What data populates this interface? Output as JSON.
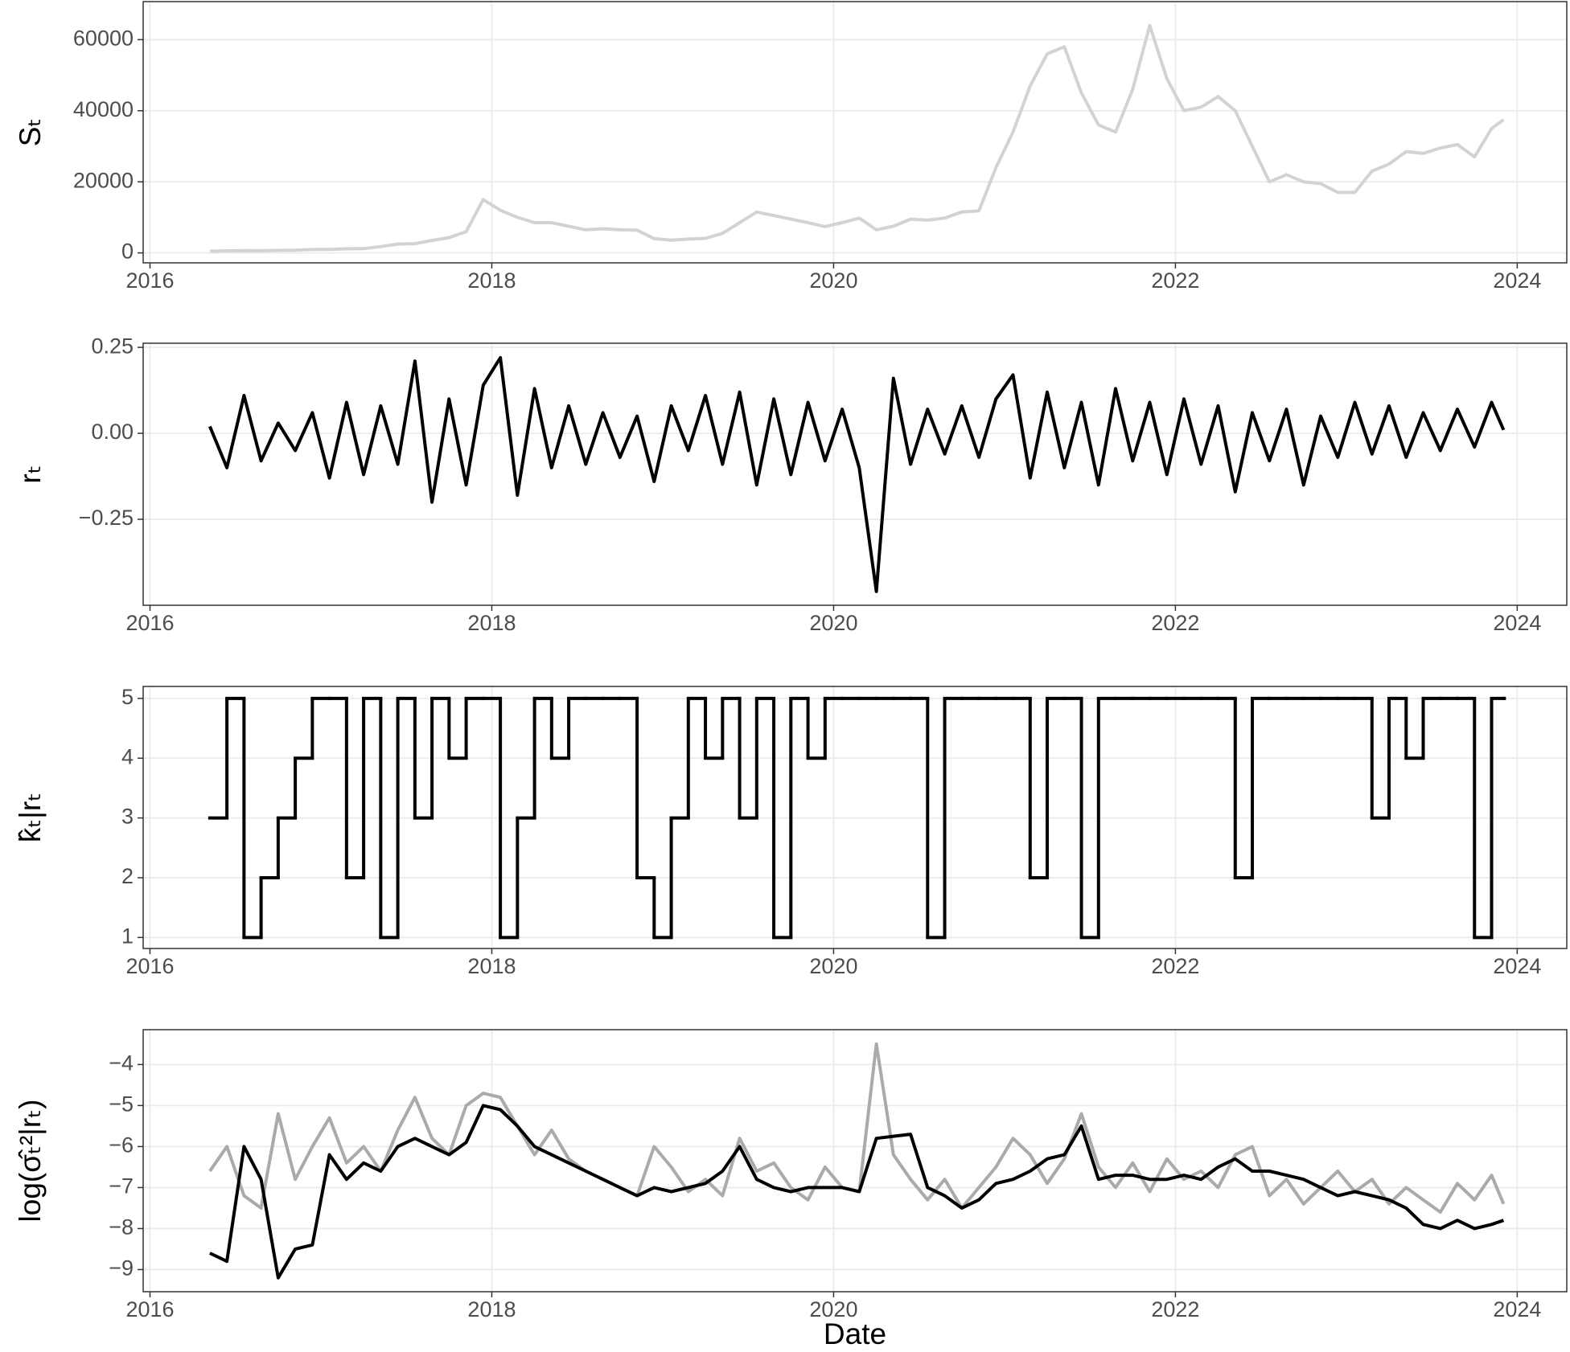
{
  "chart_data": [
    {
      "type": "line",
      "ylabel": "Sₜ",
      "color": "#d3d3d3",
      "grid": true,
      "x": [
        2016.35,
        2016.45,
        2016.55,
        2016.65,
        2016.75,
        2016.85,
        2016.95,
        2017.05,
        2017.15,
        2017.25,
        2017.35,
        2017.45,
        2017.55,
        2017.65,
        2017.75,
        2017.85,
        2017.95,
        2018.05,
        2018.15,
        2018.25,
        2018.35,
        2018.45,
        2018.55,
        2018.65,
        2018.75,
        2018.85,
        2018.95,
        2019.05,
        2019.15,
        2019.25,
        2019.35,
        2019.45,
        2019.55,
        2019.65,
        2019.75,
        2019.85,
        2019.95,
        2020.05,
        2020.15,
        2020.25,
        2020.35,
        2020.45,
        2020.55,
        2020.65,
        2020.75,
        2020.85,
        2020.95,
        2021.05,
        2021.15,
        2021.25,
        2021.35,
        2021.45,
        2021.55,
        2021.65,
        2021.75,
        2021.85,
        2021.95,
        2022.05,
        2022.15,
        2022.25,
        2022.35,
        2022.45,
        2022.55,
        2022.65,
        2022.75,
        2022.85,
        2022.95,
        2023.05,
        2023.15,
        2023.25,
        2023.35,
        2023.45,
        2023.55,
        2023.65,
        2023.75,
        2023.85,
        2023.92
      ],
      "values": [
        450,
        600,
        650,
        620,
        700,
        740,
        960,
        1000,
        1150,
        1200,
        1800,
        2500,
        2600,
        3500,
        4300,
        6000,
        15000,
        12000,
        10000,
        8500,
        8500,
        7500,
        6500,
        6800,
        6500,
        6400,
        4000,
        3600,
        3900,
        4100,
        5500,
        8500,
        11500,
        10500,
        9500,
        8500,
        7400,
        8500,
        9800,
        6500,
        7500,
        9500,
        9200,
        9800,
        11500,
        11800,
        24000,
        34000,
        47000,
        56000,
        58000,
        45000,
        36000,
        34000,
        46000,
        64000,
        49000,
        40000,
        41000,
        44000,
        40000,
        30000,
        20000,
        22000,
        20000,
        19500,
        17000,
        17000,
        23000,
        25000,
        28500,
        28000,
        29500,
        30500,
        27000,
        35000,
        37500
      ],
      "xlim": [
        2015.96,
        2024.29
      ],
      "xticks": [
        2016,
        2018,
        2020,
        2022,
        2024
      ],
      "ylim": [
        -2800,
        70700
      ],
      "yticks": [
        0,
        20000,
        40000,
        60000
      ]
    },
    {
      "type": "line",
      "ylabel": "rₜ",
      "color": "#000000",
      "grid": true,
      "x": [
        2016.35,
        2016.45,
        2016.55,
        2016.65,
        2016.75,
        2016.85,
        2016.95,
        2017.05,
        2017.15,
        2017.25,
        2017.35,
        2017.45,
        2017.55,
        2017.65,
        2017.75,
        2017.85,
        2017.95,
        2018.05,
        2018.15,
        2018.25,
        2018.35,
        2018.45,
        2018.55,
        2018.65,
        2018.75,
        2018.85,
        2018.95,
        2019.05,
        2019.15,
        2019.25,
        2019.35,
        2019.45,
        2019.55,
        2019.65,
        2019.75,
        2019.85,
        2019.95,
        2020.05,
        2020.15,
        2020.25,
        2020.35,
        2020.45,
        2020.55,
        2020.65,
        2020.75,
        2020.85,
        2020.95,
        2021.05,
        2021.15,
        2021.25,
        2021.35,
        2021.45,
        2021.55,
        2021.65,
        2021.75,
        2021.85,
        2021.95,
        2022.05,
        2022.15,
        2022.25,
        2022.35,
        2022.45,
        2022.55,
        2022.65,
        2022.75,
        2022.85,
        2022.95,
        2023.05,
        2023.15,
        2023.25,
        2023.35,
        2023.45,
        2023.55,
        2023.65,
        2023.75,
        2023.85,
        2023.92
      ],
      "values": [
        0.02,
        -0.1,
        0.11,
        -0.08,
        0.03,
        -0.05,
        0.06,
        -0.13,
        0.09,
        -0.12,
        0.08,
        -0.09,
        0.21,
        -0.2,
        0.1,
        -0.15,
        0.14,
        0.22,
        -0.18,
        0.13,
        -0.1,
        0.08,
        -0.09,
        0.06,
        -0.07,
        0.05,
        -0.14,
        0.08,
        -0.05,
        0.11,
        -0.09,
        0.12,
        -0.15,
        0.1,
        -0.12,
        0.09,
        -0.08,
        0.07,
        -0.1,
        -0.46,
        0.16,
        -0.09,
        0.07,
        -0.06,
        0.08,
        -0.07,
        0.1,
        0.17,
        -0.13,
        0.12,
        -0.1,
        0.09,
        -0.15,
        0.13,
        -0.08,
        0.09,
        -0.12,
        0.1,
        -0.09,
        0.08,
        -0.17,
        0.06,
        -0.08,
        0.07,
        -0.15,
        0.05,
        -0.07,
        0.09,
        -0.06,
        0.08,
        -0.07,
        0.06,
        -0.05,
        0.07,
        -0.04,
        0.09,
        0.01
      ],
      "xlim": [
        2015.96,
        2024.29
      ],
      "xticks": [
        2016,
        2018,
        2020,
        2022,
        2024
      ],
      "ylim": [
        -0.5,
        0.262
      ],
      "yticks": [
        {
          "value": -0.25,
          "label": "−0.25"
        },
        {
          "value": 0,
          "label": "0.00"
        },
        0.25
      ]
    },
    {
      "type": "step",
      "ylabel": "k̂ₜ|rₜ",
      "color": "#000000",
      "grid": true,
      "x": [
        2016.35,
        2016.45,
        2016.55,
        2016.65,
        2016.75,
        2016.85,
        2016.95,
        2017.05,
        2017.15,
        2017.25,
        2017.35,
        2017.45,
        2017.55,
        2017.65,
        2017.75,
        2017.85,
        2017.95,
        2018.05,
        2018.15,
        2018.25,
        2018.35,
        2018.45,
        2018.55,
        2018.65,
        2018.75,
        2018.85,
        2018.95,
        2019.05,
        2019.15,
        2019.25,
        2019.35,
        2019.45,
        2019.55,
        2019.65,
        2019.75,
        2019.85,
        2019.95,
        2020.05,
        2020.15,
        2020.25,
        2020.35,
        2020.45,
        2020.55,
        2020.65,
        2020.75,
        2020.85,
        2020.95,
        2021.05,
        2021.15,
        2021.25,
        2021.35,
        2021.45,
        2021.55,
        2021.65,
        2021.75,
        2021.85,
        2021.95,
        2022.05,
        2022.15,
        2022.25,
        2022.35,
        2022.45,
        2022.55,
        2022.65,
        2022.75,
        2022.85,
        2022.95,
        2023.05,
        2023.15,
        2023.25,
        2023.35,
        2023.45,
        2023.55,
        2023.65,
        2023.75,
        2023.85,
        2023.92
      ],
      "values": [
        3,
        5,
        1,
        2,
        3,
        4,
        5,
        5,
        2,
        5,
        1,
        5,
        3,
        5,
        4,
        5,
        5,
        1,
        3,
        5,
        4,
        5,
        5,
        5,
        5,
        2,
        1,
        3,
        5,
        4,
        5,
        3,
        5,
        1,
        5,
        4,
        5,
        5,
        5,
        5,
        5,
        5,
        1,
        5,
        5,
        5,
        5,
        5,
        2,
        5,
        5,
        1,
        5,
        5,
        5,
        5,
        5,
        5,
        5,
        5,
        2,
        5,
        5,
        5,
        5,
        5,
        5,
        5,
        3,
        5,
        4,
        5,
        5,
        5,
        1,
        5,
        5
      ],
      "xlim": [
        2015.96,
        2024.29
      ],
      "xticks": [
        2016,
        2018,
        2020,
        2022,
        2024
      ],
      "ylim": [
        0.816,
        5.2
      ],
      "yticks": [
        1,
        2,
        3,
        4,
        5
      ]
    },
    {
      "type": "line",
      "ylabel": "log(σ̂ₜ²|rₜ)",
      "xlabel": "Date",
      "grid": true,
      "x": [
        2016.35,
        2016.45,
        2016.55,
        2016.65,
        2016.75,
        2016.85,
        2016.95,
        2017.05,
        2017.15,
        2017.25,
        2017.35,
        2017.45,
        2017.55,
        2017.65,
        2017.75,
        2017.85,
        2017.95,
        2018.05,
        2018.15,
        2018.25,
        2018.35,
        2018.45,
        2018.55,
        2018.65,
        2018.75,
        2018.85,
        2018.95,
        2019.05,
        2019.15,
        2019.25,
        2019.35,
        2019.45,
        2019.55,
        2019.65,
        2019.75,
        2019.85,
        2019.95,
        2020.05,
        2020.15,
        2020.25,
        2020.35,
        2020.45,
        2020.55,
        2020.65,
        2020.75,
        2020.85,
        2020.95,
        2021.05,
        2021.15,
        2021.25,
        2021.35,
        2021.45,
        2021.55,
        2021.65,
        2021.75,
        2021.85,
        2021.95,
        2022.05,
        2022.15,
        2022.25,
        2022.35,
        2022.45,
        2022.55,
        2022.65,
        2022.75,
        2022.85,
        2022.95,
        2023.05,
        2023.15,
        2023.25,
        2023.35,
        2023.45,
        2023.55,
        2023.65,
        2023.75,
        2023.85,
        2023.92
      ],
      "series": [
        {
          "color": "#aaaaaa",
          "values": [
            -6.6,
            -6.0,
            -7.2,
            -7.5,
            -5.2,
            -6.8,
            -6.0,
            -5.3,
            -6.4,
            -6.0,
            -6.6,
            -5.6,
            -4.8,
            -5.8,
            -6.2,
            -5.0,
            -4.7,
            -4.8,
            -5.5,
            -6.2,
            -5.6,
            -6.3,
            -6.6,
            -6.8,
            -7.0,
            -7.2,
            -6.0,
            -6.5,
            -7.1,
            -6.8,
            -7.2,
            -5.8,
            -6.6,
            -6.4,
            -7.0,
            -7.3,
            -6.5,
            -7.0,
            -7.1,
            -3.5,
            -6.2,
            -6.8,
            -7.3,
            -6.8,
            -7.5,
            -7.0,
            -6.5,
            -5.8,
            -6.2,
            -6.9,
            -6.3,
            -5.2,
            -6.5,
            -7.0,
            -6.4,
            -7.1,
            -6.3,
            -6.8,
            -6.6,
            -7.0,
            -6.2,
            -6.0,
            -7.2,
            -6.8,
            -7.4,
            -7.0,
            -6.6,
            -7.1,
            -6.8,
            -7.4,
            -7.0,
            -7.3,
            -7.6,
            -6.9,
            -7.3,
            -6.7,
            -7.4
          ]
        },
        {
          "color": "#000000",
          "values": [
            -8.6,
            -8.8,
            -6.0,
            -6.8,
            -9.2,
            -8.5,
            -8.4,
            -6.2,
            -6.8,
            -6.4,
            -6.6,
            -6.0,
            -5.8,
            -6.0,
            -6.2,
            -5.9,
            -5.0,
            -5.1,
            -5.5,
            -6.0,
            -6.2,
            -6.4,
            -6.6,
            -6.8,
            -7.0,
            -7.2,
            -7.0,
            -7.1,
            -7.0,
            -6.9,
            -6.6,
            -6.0,
            -6.8,
            -7.0,
            -7.1,
            -7.0,
            -7.0,
            -7.0,
            -7.1,
            -5.8,
            -5.75,
            -5.7,
            -7.0,
            -7.2,
            -7.5,
            -7.3,
            -6.9,
            -6.8,
            -6.6,
            -6.3,
            -6.2,
            -5.5,
            -6.8,
            -6.7,
            -6.7,
            -6.8,
            -6.8,
            -6.7,
            -6.8,
            -6.5,
            -6.3,
            -6.6,
            -6.6,
            -6.7,
            -6.8,
            -7.0,
            -7.2,
            -7.1,
            -7.2,
            -7.3,
            -7.5,
            -7.9,
            -8.0,
            -7.8,
            -8.0,
            -7.9,
            -7.8
          ]
        }
      ],
      "xlim": [
        2015.96,
        2024.29
      ],
      "xticks": [
        2016,
        2018,
        2020,
        2022,
        2024
      ],
      "ylim": [
        -9.54,
        -3.15
      ],
      "yticks": [
        {
          "value": -9,
          "label": "−9"
        },
        {
          "value": -8,
          "label": "−8"
        },
        {
          "value": -7,
          "label": "−7"
        },
        {
          "value": -6,
          "label": "−6"
        },
        {
          "value": -5,
          "label": "−5"
        },
        {
          "value": -4,
          "label": "−4"
        }
      ]
    }
  ]
}
